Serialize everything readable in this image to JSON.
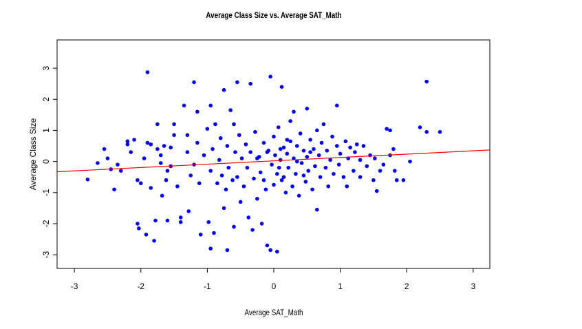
{
  "chart_data": {
    "type": "scatter",
    "title": "Average Class Size vs. Average SAT_Math",
    "x_label": "Average SAT_Math",
    "y_label": "Average Class Size",
    "xlim": [
      -3.26,
      3.25
    ],
    "ylim": [
      -3.44,
      3.91
    ],
    "xticks": [
      -3,
      -2,
      -1,
      0,
      1,
      2,
      3
    ],
    "yticks": [
      -3,
      -2,
      -1,
      0,
      1,
      2,
      3
    ],
    "series": [
      {
        "color": "#0000ff",
        "x": [
          -2.8,
          -2.65,
          -2.55,
          -2.5,
          -2.45,
          -2.4,
          -2.35,
          -2.3,
          -2.2,
          -2.2,
          -2.15,
          -2.1,
          -2.05,
          -2.05,
          -2.03,
          -2.0,
          -1.95,
          -1.92,
          -1.9,
          -1.9,
          -1.85,
          -1.85,
          -1.8,
          -1.78,
          -1.75,
          -1.75,
          -1.7,
          -1.7,
          -1.68,
          -1.65,
          -1.62,
          -1.6,
          -1.6,
          -1.55,
          -1.55,
          -1.5,
          -1.5,
          -1.45,
          -1.4,
          -1.4,
          -1.35,
          -1.3,
          -1.3,
          -1.28,
          -1.25,
          -1.2,
          -1.2,
          -1.15,
          -1.15,
          -1.12,
          -1.1,
          -1.05,
          -1.0,
          -0.98,
          -0.95,
          -0.95,
          -0.95,
          -0.92,
          -0.9,
          -0.88,
          -0.85,
          -0.82,
          -0.8,
          -0.78,
          -0.75,
          -0.75,
          -0.72,
          -0.7,
          -0.7,
          -0.68,
          -0.65,
          -0.62,
          -0.6,
          -0.6,
          -0.58,
          -0.55,
          -0.55,
          -0.52,
          -0.5,
          -0.48,
          -0.45,
          -0.42,
          -0.4,
          -0.38,
          -0.35,
          -0.35,
          -0.32,
          -0.3,
          -0.28,
          -0.25,
          -0.22,
          -0.2,
          -0.18,
          -0.15,
          -0.12,
          -0.1,
          -0.08,
          -0.05,
          -0.05,
          -0.03,
          0.0,
          0.0,
          0.02,
          0.05,
          0.05,
          0.07,
          0.1,
          0.12,
          0.12,
          0.15,
          0.18,
          0.2,
          0.22,
          0.25,
          0.25,
          0.28,
          0.3,
          0.3,
          0.33,
          0.35,
          0.38,
          0.4,
          0.42,
          0.45,
          0.48,
          0.5,
          0.5,
          0.52,
          0.55,
          0.58,
          0.6,
          0.62,
          0.65,
          0.65,
          0.68,
          0.7,
          0.72,
          0.75,
          0.78,
          0.8,
          0.82,
          0.85,
          0.88,
          0.9,
          0.95,
          0.95,
          0.98,
          1.0,
          1.05,
          1.08,
          1.1,
          1.12,
          1.15,
          1.2,
          1.22,
          1.25,
          1.3,
          1.3,
          1.35,
          1.4,
          1.45,
          1.5,
          1.52,
          1.55,
          1.6,
          1.65,
          1.7,
          1.75,
          1.75,
          1.8,
          1.82,
          1.85,
          1.95,
          2.05,
          2.2,
          2.3,
          2.3,
          2.5,
          -0.1,
          0.08,
          0.15,
          -0.25,
          0.35,
          0.45,
          0.2,
          -0.15,
          0.55,
          0.1
        ],
        "y": [
          -0.58,
          -0.05,
          0.4,
          0.1,
          -0.25,
          -0.9,
          -0.1,
          -0.3,
          0.55,
          0.65,
          0.3,
          0.7,
          -0.6,
          -2.0,
          -2.15,
          -0.7,
          0.1,
          -2.35,
          2.87,
          0.6,
          0.55,
          -0.85,
          -2.55,
          -1.9,
          1.2,
          0.4,
          -0.05,
          0.2,
          -1.1,
          0.5,
          -0.6,
          -1.9,
          -0.3,
          0.45,
          -0.15,
          0.85,
          1.2,
          -0.8,
          -1.8,
          -1.95,
          1.8,
          0.3,
          0.85,
          -1.6,
          -0.45,
          2.55,
          -0.1,
          1.6,
          0.6,
          -0.7,
          -2.35,
          0.2,
          1.05,
          -1.95,
          -2.8,
          1.8,
          -0.3,
          0.4,
          -2.3,
          1.2,
          -0.7,
          0.05,
          0.75,
          -0.45,
          2.3,
          -1.5,
          -0.9,
          -2.85,
          0.5,
          -0.2,
          1.65,
          -0.6,
          1.2,
          -2.1,
          0.3,
          2.55,
          -0.5,
          0.85,
          -1.3,
          0.1,
          -0.8,
          0.55,
          -0.2,
          -1.8,
          2.5,
          0.3,
          -2.2,
          -0.55,
          0.95,
          -1.2,
          0.15,
          -0.35,
          -2.0,
          0.6,
          -0.9,
          -2.7,
          0.35,
          2.73,
          -2.85,
          -0.1,
          -0.75,
          0.8,
          0.2,
          -2.9,
          -0.4,
          1.1,
          0.05,
          2.4,
          -0.6,
          0.45,
          -1.0,
          0.25,
          -0.2,
          0.65,
          1.3,
          -0.8,
          1.6,
          0.1,
          -0.4,
          0.5,
          -1.1,
          0.9,
          -0.05,
          0.35,
          -0.65,
          1.7,
          0.15,
          -0.3,
          0.7,
          -0.9,
          0.4,
          -0.15,
          -1.55,
          1.0,
          0.2,
          -0.5,
          0.6,
          1.2,
          -0.2,
          0.35,
          -0.8,
          0.05,
          0.8,
          -0.4,
          1.8,
          0.5,
          -0.1,
          0.25,
          -0.5,
          0.65,
          -0.8,
          0.1,
          0.45,
          -0.3,
          0.3,
          0.55,
          -0.5,
          0.05,
          0.5,
          -0.15,
          0.2,
          -0.6,
          0.1,
          -0.95,
          -0.3,
          -0.1,
          1.05,
          1.0,
          0.2,
          0.4,
          -0.3,
          -0.6,
          -0.6,
          0.0,
          1.1,
          0.95,
          2.57,
          0.95,
          0.3,
          -0.2,
          -0.5,
          0.1,
          0.0,
          -0.45,
          0.7,
          -0.6,
          0.3,
          0.4
        ]
      }
    ],
    "fit_line": {
      "color": "#ff0000",
      "x": [
        -3.26,
        3.25
      ],
      "y": [
        -0.33,
        0.37
      ]
    }
  }
}
